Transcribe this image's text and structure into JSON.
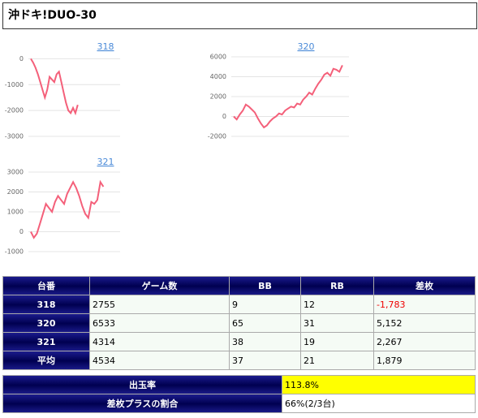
{
  "title": "沖ドキ!DUO-30",
  "chart_data": [
    {
      "type": "line",
      "title": "318",
      "color": "#f4607a",
      "values": [
        0,
        -150,
        -350,
        -600,
        -900,
        -1200,
        -1500,
        -1200,
        -700,
        -800,
        -900,
        -600,
        -500,
        -900,
        -1300,
        -1700,
        -2000,
        -2100,
        -1900,
        -2100,
        -1783
      ],
      "ylim": [
        -3000,
        200
      ],
      "yticks": [
        0,
        -1000,
        -2000,
        -3000
      ],
      "grid": true
    },
    {
      "type": "line",
      "title": "320",
      "color": "#f4607a",
      "values": [
        0,
        -300,
        200,
        600,
        1200,
        1000,
        700,
        400,
        -200,
        -700,
        -1100,
        -900,
        -500,
        -200,
        0,
        300,
        200,
        600,
        800,
        1000,
        900,
        1300,
        1200,
        1700,
        2000,
        2400,
        2200,
        2800,
        3300,
        3700,
        4200,
        4400,
        4100,
        4800,
        4700,
        4500,
        5152
      ],
      "ylim": [
        -2000,
        6000
      ],
      "yticks": [
        6000,
        4000,
        2000,
        0,
        -2000
      ],
      "grid": true
    },
    {
      "type": "line",
      "title": "321",
      "color": "#f4607a",
      "values": [
        0,
        -300,
        -100,
        400,
        900,
        1400,
        1200,
        1000,
        1500,
        1800,
        1600,
        1400,
        1900,
        2200,
        2500,
        2200,
        1800,
        1300,
        900,
        700,
        1500,
        1400,
        1600,
        2500,
        2267
      ],
      "ylim": [
        -1000,
        3000
      ],
      "yticks": [
        3000,
        2000,
        1000,
        0,
        -1000
      ],
      "grid": true
    }
  ],
  "table": {
    "header": [
      "台番",
      "ゲーム数",
      "BB",
      "RB",
      "差枚"
    ],
    "rows": [
      [
        "318",
        "2755",
        "9",
        "12",
        "-1,783"
      ],
      [
        "320",
        "6533",
        "65",
        "31",
        "5,152"
      ],
      [
        "321",
        "4314",
        "38",
        "19",
        "2,267"
      ],
      [
        "平均",
        "4534",
        "37",
        "21",
        "1,879"
      ]
    ]
  },
  "summary": {
    "rows": [
      [
        "出玉率",
        "113.8%"
      ],
      [
        "差枚プラスの割合",
        "66%(2/3台)"
      ]
    ]
  }
}
